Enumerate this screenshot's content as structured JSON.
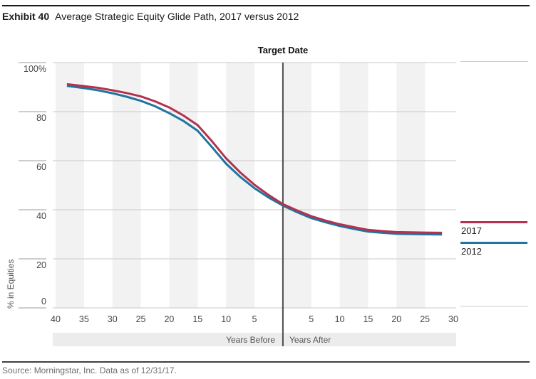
{
  "header": {
    "exhibit_label": "Exhibit 40",
    "title": "Average Strategic Equity Glide Path, 2017 versus 2012"
  },
  "footer": {
    "source": "Source: Morningstar, Inc. Data as of 12/31/17."
  },
  "chart_data": {
    "type": "line",
    "title": "Target Date",
    "ylabel": "% in Equities",
    "x_axis": {
      "label_before": "Years Before",
      "label_after": "Years After",
      "ticks_before": [
        40,
        35,
        30,
        25,
        20,
        15,
        10,
        5
      ],
      "ticks_after": [
        5,
        10,
        15,
        20,
        25,
        30
      ],
      "range_years": [
        -40.5,
        30.5
      ],
      "target_year": 0
    },
    "y_axis": {
      "range": [
        0,
        100
      ],
      "ticks": [
        {
          "value": 100,
          "label": "100%"
        },
        {
          "value": 80,
          "label": "80"
        },
        {
          "value": 60,
          "label": "60"
        },
        {
          "value": 40,
          "label": "40"
        },
        {
          "value": 20,
          "label": "20"
        },
        {
          "value": 0,
          "label": "0"
        }
      ]
    },
    "legend_position": "right",
    "grid": true,
    "series": [
      {
        "name": "2017",
        "color": "#b5314d",
        "points": [
          [
            -38,
            91.2
          ],
          [
            -35,
            90.4
          ],
          [
            -32.5,
            89.7
          ],
          [
            -30,
            88.7
          ],
          [
            -27.5,
            87.6
          ],
          [
            -25,
            86.2
          ],
          [
            -22.5,
            84.2
          ],
          [
            -20,
            81.7
          ],
          [
            -17.5,
            78.4
          ],
          [
            -15,
            74.5
          ],
          [
            -12.5,
            68.0
          ],
          [
            -10,
            61.0
          ],
          [
            -7.5,
            55.2
          ],
          [
            -5,
            50.2
          ],
          [
            -2.5,
            46.0
          ],
          [
            0,
            42.3
          ],
          [
            2.5,
            39.7
          ],
          [
            5,
            37.4
          ],
          [
            7.5,
            35.6
          ],
          [
            10,
            34.1
          ],
          [
            12.5,
            32.9
          ],
          [
            15,
            31.8
          ],
          [
            17.5,
            31.3
          ],
          [
            20,
            30.9
          ],
          [
            25,
            30.7
          ],
          [
            28,
            30.6
          ]
        ]
      },
      {
        "name": "2012",
        "color": "#1f74a0",
        "points": [
          [
            -38,
            90.5
          ],
          [
            -35,
            89.6
          ],
          [
            -32.5,
            88.7
          ],
          [
            -30,
            87.5
          ],
          [
            -27.5,
            86.1
          ],
          [
            -25,
            84.4
          ],
          [
            -22.5,
            82.2
          ],
          [
            -20,
            79.4
          ],
          [
            -17.5,
            76.2
          ],
          [
            -15,
            72.2
          ],
          [
            -12.5,
            65.6
          ],
          [
            -10,
            58.8
          ],
          [
            -7.5,
            53.4
          ],
          [
            -5,
            48.8
          ],
          [
            -2.5,
            45.0
          ],
          [
            0,
            41.7
          ],
          [
            2.5,
            39.0
          ],
          [
            5,
            36.6
          ],
          [
            7.5,
            34.9
          ],
          [
            10,
            33.4
          ],
          [
            12.5,
            32.2
          ],
          [
            15,
            31.1
          ],
          [
            17.5,
            30.6
          ],
          [
            20,
            30.2
          ],
          [
            25,
            30.0
          ],
          [
            28,
            29.9
          ]
        ]
      }
    ],
    "style": {
      "stripe_color": "#f2f2f2",
      "years_strip_color": "#ececec",
      "gridline_color": "#c9c9c9",
      "tick_color": "#9b9b9b",
      "target_line_color": "#4d4d4d"
    }
  }
}
